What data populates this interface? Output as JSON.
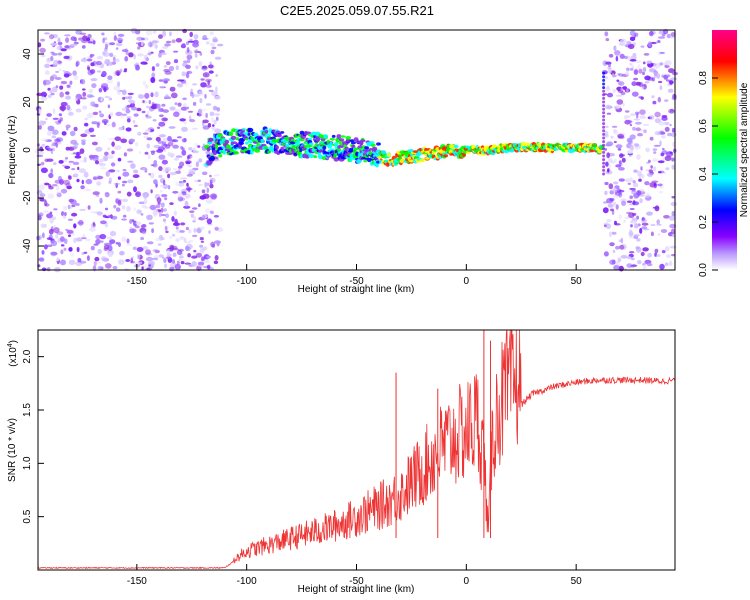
{
  "title": "C2E5.2025.059.07.55.R21",
  "chart_data": [
    {
      "type": "heatmap",
      "xlabel": "Height of straight line (km)",
      "ylabel": "Frequency (Hz)",
      "xlim": [
        -195,
        95
      ],
      "ylim": [
        -50,
        50
      ],
      "xticks": [
        -150,
        -100,
        -50,
        0,
        50
      ],
      "yticks": [
        -40,
        -20,
        0,
        20,
        40
      ],
      "ytick_labels": [
        "-40",
        "-20",
        "0",
        "20",
        "40"
      ],
      "grid": false,
      "noise_regions_km": [
        [
          -195,
          -112
        ],
        [
          63,
          95
        ]
      ],
      "signal_band_km": [
        -118,
        62
      ],
      "ridge": {
        "x": [
          -118,
          -110,
          -100,
          -90,
          -80,
          -70,
          -60,
          -50,
          -40,
          -35,
          -30,
          -20,
          -10,
          0,
          10,
          20,
          30,
          40,
          50,
          58,
          62
        ],
        "y": [
          -1,
          3,
          4,
          4,
          3,
          2,
          1,
          0,
          -2,
          -4,
          -3,
          -2,
          -1,
          0,
          0,
          1,
          1,
          1,
          1,
          1,
          0
        ]
      },
      "colorbar": {
        "label": "Normalized spectral amplitude",
        "range": [
          0,
          1
        ],
        "ticks": [
          0.0,
          0.2,
          0.4,
          0.6,
          0.8
        ],
        "tick_labels": [
          "0.0",
          "0.2",
          "0.4",
          "0.6",
          "0.8"
        ],
        "colors": [
          "#ffffff",
          "#8800ff",
          "#0000ff",
          "#00ffff",
          "#00ff00",
          "#ffff00",
          "#ff0000",
          "#ff0088"
        ]
      }
    },
    {
      "type": "line",
      "xlabel": "Height of straight line (km)",
      "ylabel": "SNR (10 * v/v)",
      "multiplier": "(x10",
      "multiplier_exp": "4",
      "xlim": [
        -195,
        95
      ],
      "ylim": [
        0,
        2.25
      ],
      "xticks": [
        -150,
        -100,
        -50,
        0,
        50
      ],
      "yticks": [
        0.5,
        1.0,
        1.5,
        2.0
      ],
      "ytick_labels": [
        "0.5",
        "1.0",
        "1.5",
        "2.0"
      ],
      "grid": false,
      "line_color": "#ee3333",
      "series": [
        {
          "x": [
            -195,
            -110,
            -106,
            -100,
            -90,
            -80,
            -70,
            -60,
            -50,
            -40,
            -30,
            -20,
            -15,
            -10,
            -5,
            0,
            5,
            8,
            10,
            12,
            15,
            20,
            25,
            30,
            40,
            50,
            60,
            70,
            80,
            90,
            95
          ],
          "values": [
            0.02,
            0.02,
            0.08,
            0.15,
            0.2,
            0.25,
            0.3,
            0.35,
            0.42,
            0.5,
            0.6,
            0.8,
            0.9,
            1.0,
            1.05,
            1.1,
            1.2,
            0.9,
            0.3,
            1.1,
            1.3,
            1.45,
            1.55,
            1.65,
            1.72,
            1.76,
            1.78,
            1.78,
            1.78,
            1.77,
            1.78
          ]
        }
      ],
      "spikes": [
        {
          "x": -32,
          "y": 1.85
        },
        {
          "x": -13,
          "y": 1.7
        },
        {
          "x": 8,
          "y": 2.25
        },
        {
          "x": 11,
          "y": 2.15
        }
      ]
    }
  ]
}
